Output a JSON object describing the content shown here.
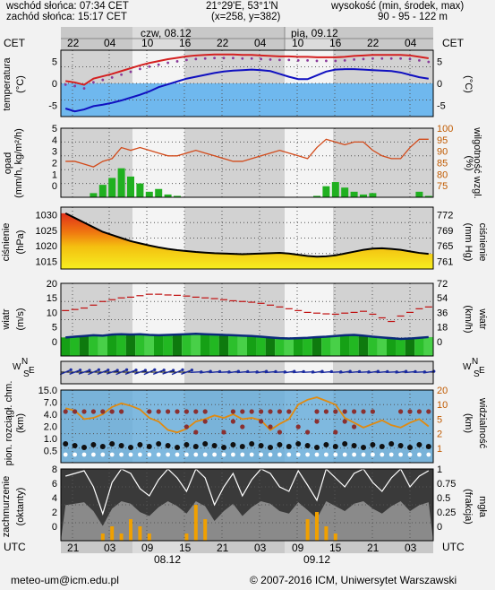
{
  "header": {
    "sunrise": "wschód słońca: 07:34 CET",
    "sunset": "zachód słońca: 15:17 CET",
    "coords": "21°29'E, 53°1'N",
    "grid": "(x=258, y=382)",
    "elev_title": "wysokość (min, środek, max)",
    "elev_values": "90 - 95 - 122 m"
  },
  "top_axis": {
    "tz_left": "CET",
    "tz_right": "CET",
    "day1": "czw, 08.12",
    "day2": "pią, 09.12",
    "hours": [
      "22",
      "04",
      "10",
      "16",
      "22",
      "04",
      "10",
      "16",
      "22",
      "04"
    ]
  },
  "bottom_axis": {
    "tz_left": "UTC",
    "tz_right": "UTC",
    "hours": [
      "21",
      "03",
      "09",
      "15",
      "21",
      "03",
      "09",
      "15",
      "21",
      "03"
    ],
    "day1": "08.12",
    "day2": "09.12"
  },
  "footer": {
    "email": "meteo-um@icm.edu.pl",
    "copyright": "© 2007-2016 ICM, Uniwersytet Warszawski"
  },
  "panels": {
    "temperature": {
      "left_label": "temperatura",
      "left_unit": "(°C)",
      "right_unit": "(°C)",
      "left_ticks": [
        "5",
        "0",
        "-5"
      ],
      "right_ticks": [
        "5",
        "0",
        "-5"
      ]
    },
    "precip": {
      "left_label": "opad",
      "left_unit": "(mm/h, kg/m²/h)",
      "right_label": "wilgotność wzgl.",
      "right_unit": "(%)",
      "left_ticks": [
        "5",
        "4",
        "3",
        "2",
        "1",
        "0"
      ],
      "right_ticks": [
        "100",
        "95",
        "90",
        "85",
        "80",
        "75"
      ]
    },
    "pressure": {
      "left_label": "ciśnienie",
      "left_unit": "(hPa)",
      "right_label": "ciśnienie",
      "right_unit": "(mm Hg)",
      "left_ticks": [
        "1030",
        "1025",
        "1020",
        "1015"
      ],
      "right_ticks": [
        "772",
        "769",
        "765",
        "761"
      ]
    },
    "wind": {
      "left_label": "wiatr",
      "left_unit": "(m/s)",
      "right_label": "wiatr",
      "right_unit": "(km/h)",
      "left_ticks": [
        "20",
        "15",
        "10",
        "5",
        "0"
      ],
      "right_ticks": [
        "72",
        "54",
        "36",
        "18",
        "0"
      ]
    },
    "winddir": {
      "compass_n": "N",
      "compass_w": "W",
      "compass_e": "E",
      "compass_s": "S"
    },
    "visibility": {
      "left_label": "pion. rozciągł. chm.",
      "left_unit": "(km)",
      "right_label": "widzialność",
      "right_unit": "(km)",
      "left_ticks": [
        "15.0",
        "7.0",
        "4.0",
        "2.0",
        "1.0",
        "0.5"
      ],
      "right_ticks": [
        "20",
        "10",
        "5",
        "2",
        "1"
      ]
    },
    "cloud": {
      "left_label": "zachmurzenie",
      "left_unit": "(oktanty)",
      "right_label": "mgła",
      "right_unit": "(frakcja)",
      "left_ticks": [
        "8",
        "6",
        "4",
        "2",
        "0"
      ],
      "right_ticks": [
        "1",
        "0.75",
        "0.5",
        "0.25",
        "0"
      ]
    }
  },
  "colors": {
    "temp_line": "#d42020",
    "dew_line": "#1010c0",
    "cold_fill": "#6fb8ee",
    "rh_line": "#d24a1a",
    "precip_bar": "#20b020",
    "pressure_line": "#000000",
    "wind_line": "#0a2a7a",
    "gust_marks": "#c01010",
    "night_bg": "#d2d2d2",
    "day_bg": "#f4f4f4"
  },
  "chart_data": [
    {
      "type": "line",
      "name": "temperature",
      "ylim": [
        -7,
        7
      ],
      "series": [
        {
          "name": "temperatura",
          "values": [
            0.5,
            0.2,
            -0.3,
            1.0,
            1.5,
            2.0,
            2.6,
            3.2,
            3.8,
            4.3,
            4.7,
            5.1,
            5.4,
            5.7,
            5.9,
            6.0,
            6.1,
            6.1,
            6.1,
            6.0,
            6.0,
            5.9,
            5.8,
            5.7,
            5.7,
            5.6,
            5.6,
            5.5,
            5.5,
            5.5,
            5.6,
            5.8,
            5.9,
            6.0,
            6.0,
            6.0,
            6.0,
            5.9,
            5.6,
            5.3
          ]
        },
        {
          "name": "punkt rosy",
          "values": [
            -5.3,
            -5.9,
            -5.5,
            -4.8,
            -4.5,
            -4.1,
            -3.6,
            -3.0,
            -2.4,
            -1.7,
            -0.8,
            -0.2,
            0.4,
            1.0,
            1.4,
            1.8,
            2.2,
            2.5,
            2.7,
            2.8,
            2.9,
            2.8,
            2.6,
            2.0,
            1.4,
            0.9,
            0.9,
            1.7,
            2.5,
            2.9,
            3.0,
            3.0,
            2.9,
            2.8,
            2.7,
            2.6,
            2.3,
            1.8,
            1.3,
            1.0
          ]
        }
      ]
    },
    {
      "type": "bar",
      "name": "precip",
      "ylim": [
        0,
        5
      ],
      "values": [
        0,
        0,
        0,
        0.3,
        0.9,
        1.4,
        2.1,
        1.5,
        1.0,
        0.4,
        0.6,
        0.2,
        0.1,
        0,
        0,
        0,
        0,
        0,
        0,
        0,
        0,
        0,
        0,
        0,
        0,
        0,
        0,
        0.1,
        0.8,
        1.1,
        0.7,
        0.4,
        0.2,
        0.3,
        0,
        0,
        0,
        0,
        0.4,
        0.1
      ],
      "humidity": [
        88,
        88,
        87,
        86,
        88,
        89,
        93,
        92,
        93,
        92,
        91,
        90,
        90,
        91,
        92,
        91,
        90,
        89,
        88,
        88,
        89,
        90,
        91,
        92,
        91,
        90,
        89,
        93,
        96,
        95,
        94,
        95,
        95,
        92,
        90,
        89,
        89,
        93,
        96,
        96
      ]
    },
    {
      "type": "area",
      "name": "pressure",
      "ylim": [
        1011,
        1031
      ],
      "values": [
        1029,
        1027.5,
        1026,
        1024.5,
        1023,
        1022,
        1021,
        1020,
        1019.3,
        1018.6,
        1018,
        1017.5,
        1017.1,
        1016.8,
        1016.5,
        1016.3,
        1016.1,
        1016,
        1015.9,
        1015.8,
        1015.9,
        1016,
        1016.1,
        1016.2,
        1016,
        1015.6,
        1015.2,
        1015,
        1015.1,
        1015.4,
        1016,
        1016.6,
        1017.2,
        1017.6,
        1017.7,
        1017.5,
        1017.2,
        1016.7,
        1016.2,
        1015.9
      ]
    },
    {
      "type": "area",
      "name": "wind",
      "ylim": [
        0,
        20
      ],
      "values": [
        5.1,
        5.3,
        5.5,
        5.7,
        5.6,
        5.9,
        6.0,
        5.9,
        6.0,
        5.8,
        5.7,
        5.8,
        5.9,
        6.0,
        6.1,
        6.0,
        5.9,
        5.8,
        5.7,
        5.6,
        5.5,
        5.3,
        5.1,
        4.9,
        4.8,
        4.9,
        5.0,
        5.2,
        5.3,
        5.5,
        5.7,
        5.8,
        5.6,
        5.3,
        5.1,
        4.9,
        4.7,
        4.8,
        5.0,
        5.2
      ],
      "gusts": [
        12.5,
        12.8,
        13.2,
        14.0,
        15.0,
        15.5,
        16.0,
        16.2,
        16.6,
        17.0,
        17.0,
        16.8,
        16.7,
        16.5,
        16.2,
        16.0,
        15.8,
        15.5,
        15.2,
        15.0,
        14.8,
        14.5,
        14.0,
        13.5,
        13.0,
        12.5,
        12.0,
        11.8,
        11.6,
        11.5,
        11.8,
        12.0,
        12.3,
        11.5,
        10.5,
        9.5,
        11.0,
        12.0,
        13.0,
        13.5
      ]
    },
    {
      "type": "line",
      "name": "visibility",
      "ylim": [
        0,
        6
      ],
      "visibility_km": [
        4.5,
        4.3,
        3.6,
        3.7,
        4.0,
        4.6,
        4.9,
        4.7,
        4.4,
        3.7,
        3.4,
        2.7,
        2.5,
        2.8,
        3.4,
        3.6,
        3.9,
        3.7,
        4.0,
        3.6,
        3.7,
        3.5,
        2.7,
        3.2,
        3.6,
        4.8,
        5.2,
        5.4,
        5.1,
        4.8,
        3.7,
        3.3,
        2.9,
        3.2,
        3.5,
        3.1,
        2.9,
        3.3,
        3.6,
        3.0
      ]
    },
    {
      "type": "bar",
      "name": "cloud",
      "ylim": [
        0,
        8
      ],
      "fog": [
        0,
        0,
        0,
        0,
        0.1,
        0.2,
        0.1,
        0.3,
        0.2,
        0.1,
        0,
        0,
        0,
        0.1,
        0.5,
        0.3,
        0,
        0,
        0,
        0,
        0,
        0,
        0,
        0,
        0,
        0,
        0.3,
        0.4,
        0.2,
        0.1,
        0,
        0,
        0,
        0,
        0,
        0,
        0,
        0,
        0,
        0
      ],
      "total": [
        7.2,
        7.5,
        7.8,
        6.0,
        3.0,
        6.5,
        8.0,
        7.5,
        5.8,
        5.0,
        6.8,
        8.0,
        7.0,
        5.5,
        8.0,
        7.0,
        4.0,
        6.0,
        7.5,
        5.0,
        6.8,
        8.0,
        7.5,
        6.0,
        5.5,
        7.8,
        6.2,
        4.5,
        8.0,
        7.0,
        6.0,
        7.5,
        8.0,
        6.5,
        5.5,
        7.0,
        8.0,
        6.0,
        7.2,
        7.8
      ]
    }
  ]
}
